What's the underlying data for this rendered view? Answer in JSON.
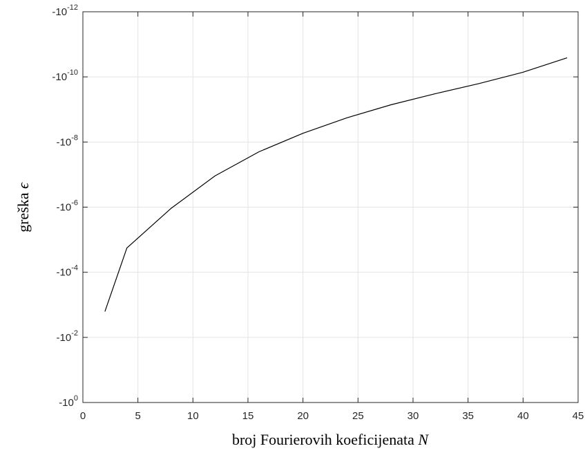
{
  "chart_data": {
    "type": "line",
    "title": "",
    "xlabel": "broj Fourierovih koeficijenata",
    "xlabel_symbol": "N",
    "ylabel": "greška",
    "ylabel_symbol": "ϵ",
    "xlim": [
      0,
      45
    ],
    "x_ticks": [
      0,
      5,
      10,
      15,
      20,
      25,
      30,
      35,
      40,
      45
    ],
    "y_scale": "log-magnitude (negative values)",
    "y_tick_values": [
      -1,
      -0.01,
      -0.0001,
      -1e-06,
      -1e-08,
      -1e-10,
      -1e-12
    ],
    "y_tick_labels": [
      {
        "base": "-10",
        "exp": "0"
      },
      {
        "base": "-10",
        "exp": "-2"
      },
      {
        "base": "-10",
        "exp": "-4"
      },
      {
        "base": "-10",
        "exp": "-6"
      },
      {
        "base": "-10",
        "exp": "-8"
      },
      {
        "base": "-10",
        "exp": "-10"
      },
      {
        "base": "-10",
        "exp": "-12"
      }
    ],
    "grid": true,
    "series": [
      {
        "x": [
          2,
          4,
          8,
          12,
          16,
          20,
          24,
          28,
          32,
          36,
          40,
          44
        ],
        "y": [
          -0.0016,
          -1.8e-05,
          -1.1e-06,
          -1.1e-07,
          -2e-08,
          -5.4e-09,
          -1.8e-09,
          -7.2e-10,
          -3.3e-10,
          -1.6e-10,
          -7.2e-11,
          -2.6e-11
        ]
      }
    ],
    "colors": {
      "line": "#000000",
      "grid": "#e3e3e3",
      "axis": "#262626"
    }
  }
}
